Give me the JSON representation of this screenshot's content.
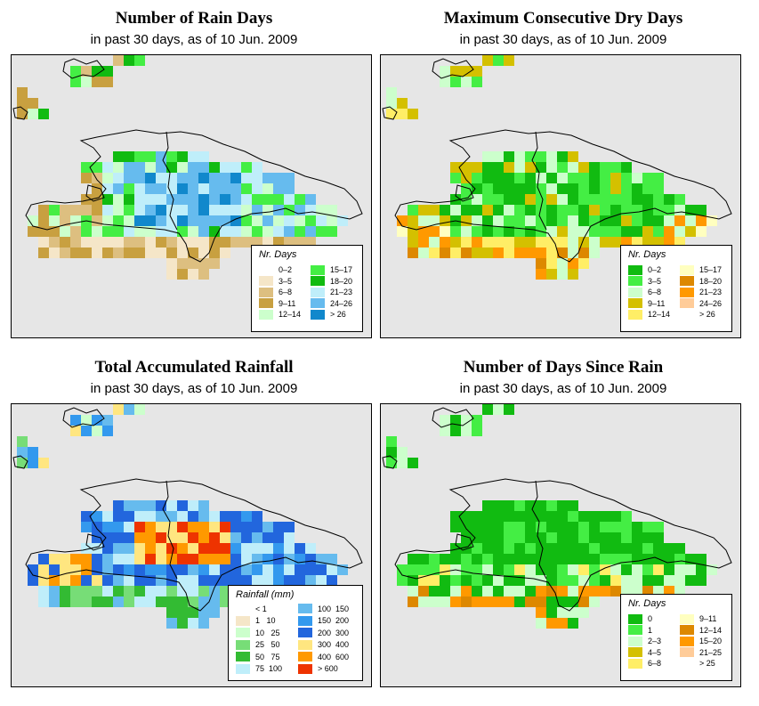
{
  "panels": [
    {
      "title": "Number of Rain Days",
      "subtitle": "in past 30 days, as of  10 Jun. 2009",
      "legend_title": "Nr. Days",
      "legend": [
        {
          "label": "0–2",
          "color": "#ffffff"
        },
        {
          "label": "3–5",
          "color": "#f5e6c8"
        },
        {
          "label": "6–8",
          "color": "#ddbf80"
        },
        {
          "label": "9–11",
          "color": "#c8a040"
        },
        {
          "label": "12–14",
          "color": "#ccffcc"
        },
        {
          "label": "15–17",
          "color": "#44ee44"
        },
        {
          "label": "18–20",
          "color": "#11bb11"
        },
        {
          "label": "21–23",
          "color": "#bfeefa"
        },
        {
          "label": "24–26",
          "color": "#66bbee"
        },
        {
          "label": "> 26",
          "color": "#1188cc"
        }
      ]
    },
    {
      "title": "Maximum Consecutive Dry Days",
      "subtitle": "in past 30 days, as of  10 Jun. 2009",
      "legend_title": "Nr. Days",
      "legend": [
        {
          "label": "0–2",
          "color": "#11bb11"
        },
        {
          "label": "3–5",
          "color": "#44ee44"
        },
        {
          "label": "6–8",
          "color": "#ccffcc"
        },
        {
          "label": "9–11",
          "color": "#d4c000"
        },
        {
          "label": "12–14",
          "color": "#ffee66"
        },
        {
          "label": "15–17",
          "color": "#ffffc0"
        },
        {
          "label": "18–20",
          "color": "#dd8800"
        },
        {
          "label": "21–23",
          "color": "#ff9900"
        },
        {
          "label": "24–26",
          "color": "#ffcc99"
        },
        {
          "label": "> 26",
          "color": "#ffffff"
        }
      ]
    },
    {
      "title": "Total Accumulated Rainfall",
      "subtitle": "in past 30 days, as of  10 Jun. 2009",
      "legend_title": "Rainfall (mm)",
      "legend": [
        {
          "label": "< 1",
          "color": "#ffffff"
        },
        {
          "label": "1   10",
          "color": "#f5e6c8"
        },
        {
          "label": "10   25",
          "color": "#ccffcc"
        },
        {
          "label": "25   50",
          "color": "#77dd77"
        },
        {
          "label": "50   75",
          "color": "#33bb33"
        },
        {
          "label": "75  100",
          "color": "#bfeefa"
        },
        {
          "label": "100  150",
          "color": "#66bbee"
        },
        {
          "label": "150  200",
          "color": "#3399ee"
        },
        {
          "label": "200  300",
          "color": "#2266dd"
        },
        {
          "label": "300  400",
          "color": "#ffe680"
        },
        {
          "label": "400  600",
          "color": "#ff9900"
        },
        {
          "label": "> 600",
          "color": "#ee3300"
        }
      ]
    },
    {
      "title": "Number of Days Since Rain",
      "subtitle": "in past 30 days, as of  10 Jun. 2009",
      "legend_title": "Nr. Days",
      "legend": [
        {
          "label": "0",
          "color": "#11bb11"
        },
        {
          "label": "1",
          "color": "#44ee44"
        },
        {
          "label": "2–3",
          "color": "#ccffcc"
        },
        {
          "label": "4–5",
          "color": "#d4c000"
        },
        {
          "label": "6–8",
          "color": "#ffee66"
        },
        {
          "label": "9–11",
          "color": "#ffffc0"
        },
        {
          "label": "12–14",
          "color": "#dd8800"
        },
        {
          "label": "15–20",
          "color": "#ff9900"
        },
        {
          "label": "21–25",
          "color": "#ffcc99"
        },
        {
          "label": "> 25",
          "color": "#ffffff"
        }
      ]
    }
  ]
}
